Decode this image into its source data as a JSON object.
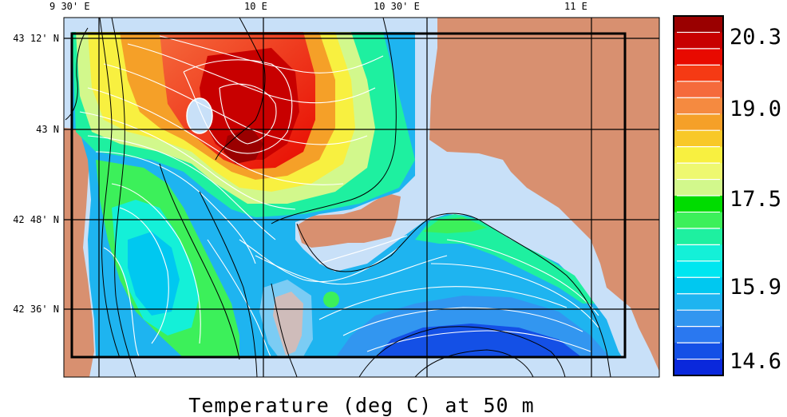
{
  "caption": "Temperature (deg C) at 50 m",
  "lon_ticks": [
    {
      "label": "9 30' E",
      "lon": 9.5
    },
    {
      "label": "10 E",
      "lon": 10.0
    },
    {
      "label": "10 30' E",
      "lon": 10.5
    },
    {
      "label": "11 E",
      "lon": 11.0
    }
  ],
  "lat_ticks": [
    {
      "label": "43 12' N",
      "lat": 43.2
    },
    {
      "label": "43 N",
      "lat": 43.0
    },
    {
      "label": "42 48' N",
      "lat": 42.8
    },
    {
      "label": "42 36' N",
      "lat": 42.6
    }
  ],
  "colorbar": {
    "labels": [
      "20.3",
      "19.0",
      "17.5",
      "15.9",
      "14.6"
    ],
    "colors": [
      "#9a0000",
      "#c80000",
      "#e80a00",
      "#f53a14",
      "#f56a3c",
      "#f58a40",
      "#f5a028",
      "#f8c828",
      "#f8f040",
      "#eef870",
      "#d2f88c",
      "#00dc00",
      "#3cf05a",
      "#1ef0a0",
      "#14f0d8",
      "#00e6f0",
      "#00c8f0",
      "#1eb4f0",
      "#3296f0",
      "#2a78f0",
      "#1450e6",
      "#0a28dc"
    ]
  },
  "colors": {
    "land": "#d89070",
    "shelf": "#c8e0f8",
    "contour": "#ffffff",
    "bathymetry": "#000000"
  }
}
